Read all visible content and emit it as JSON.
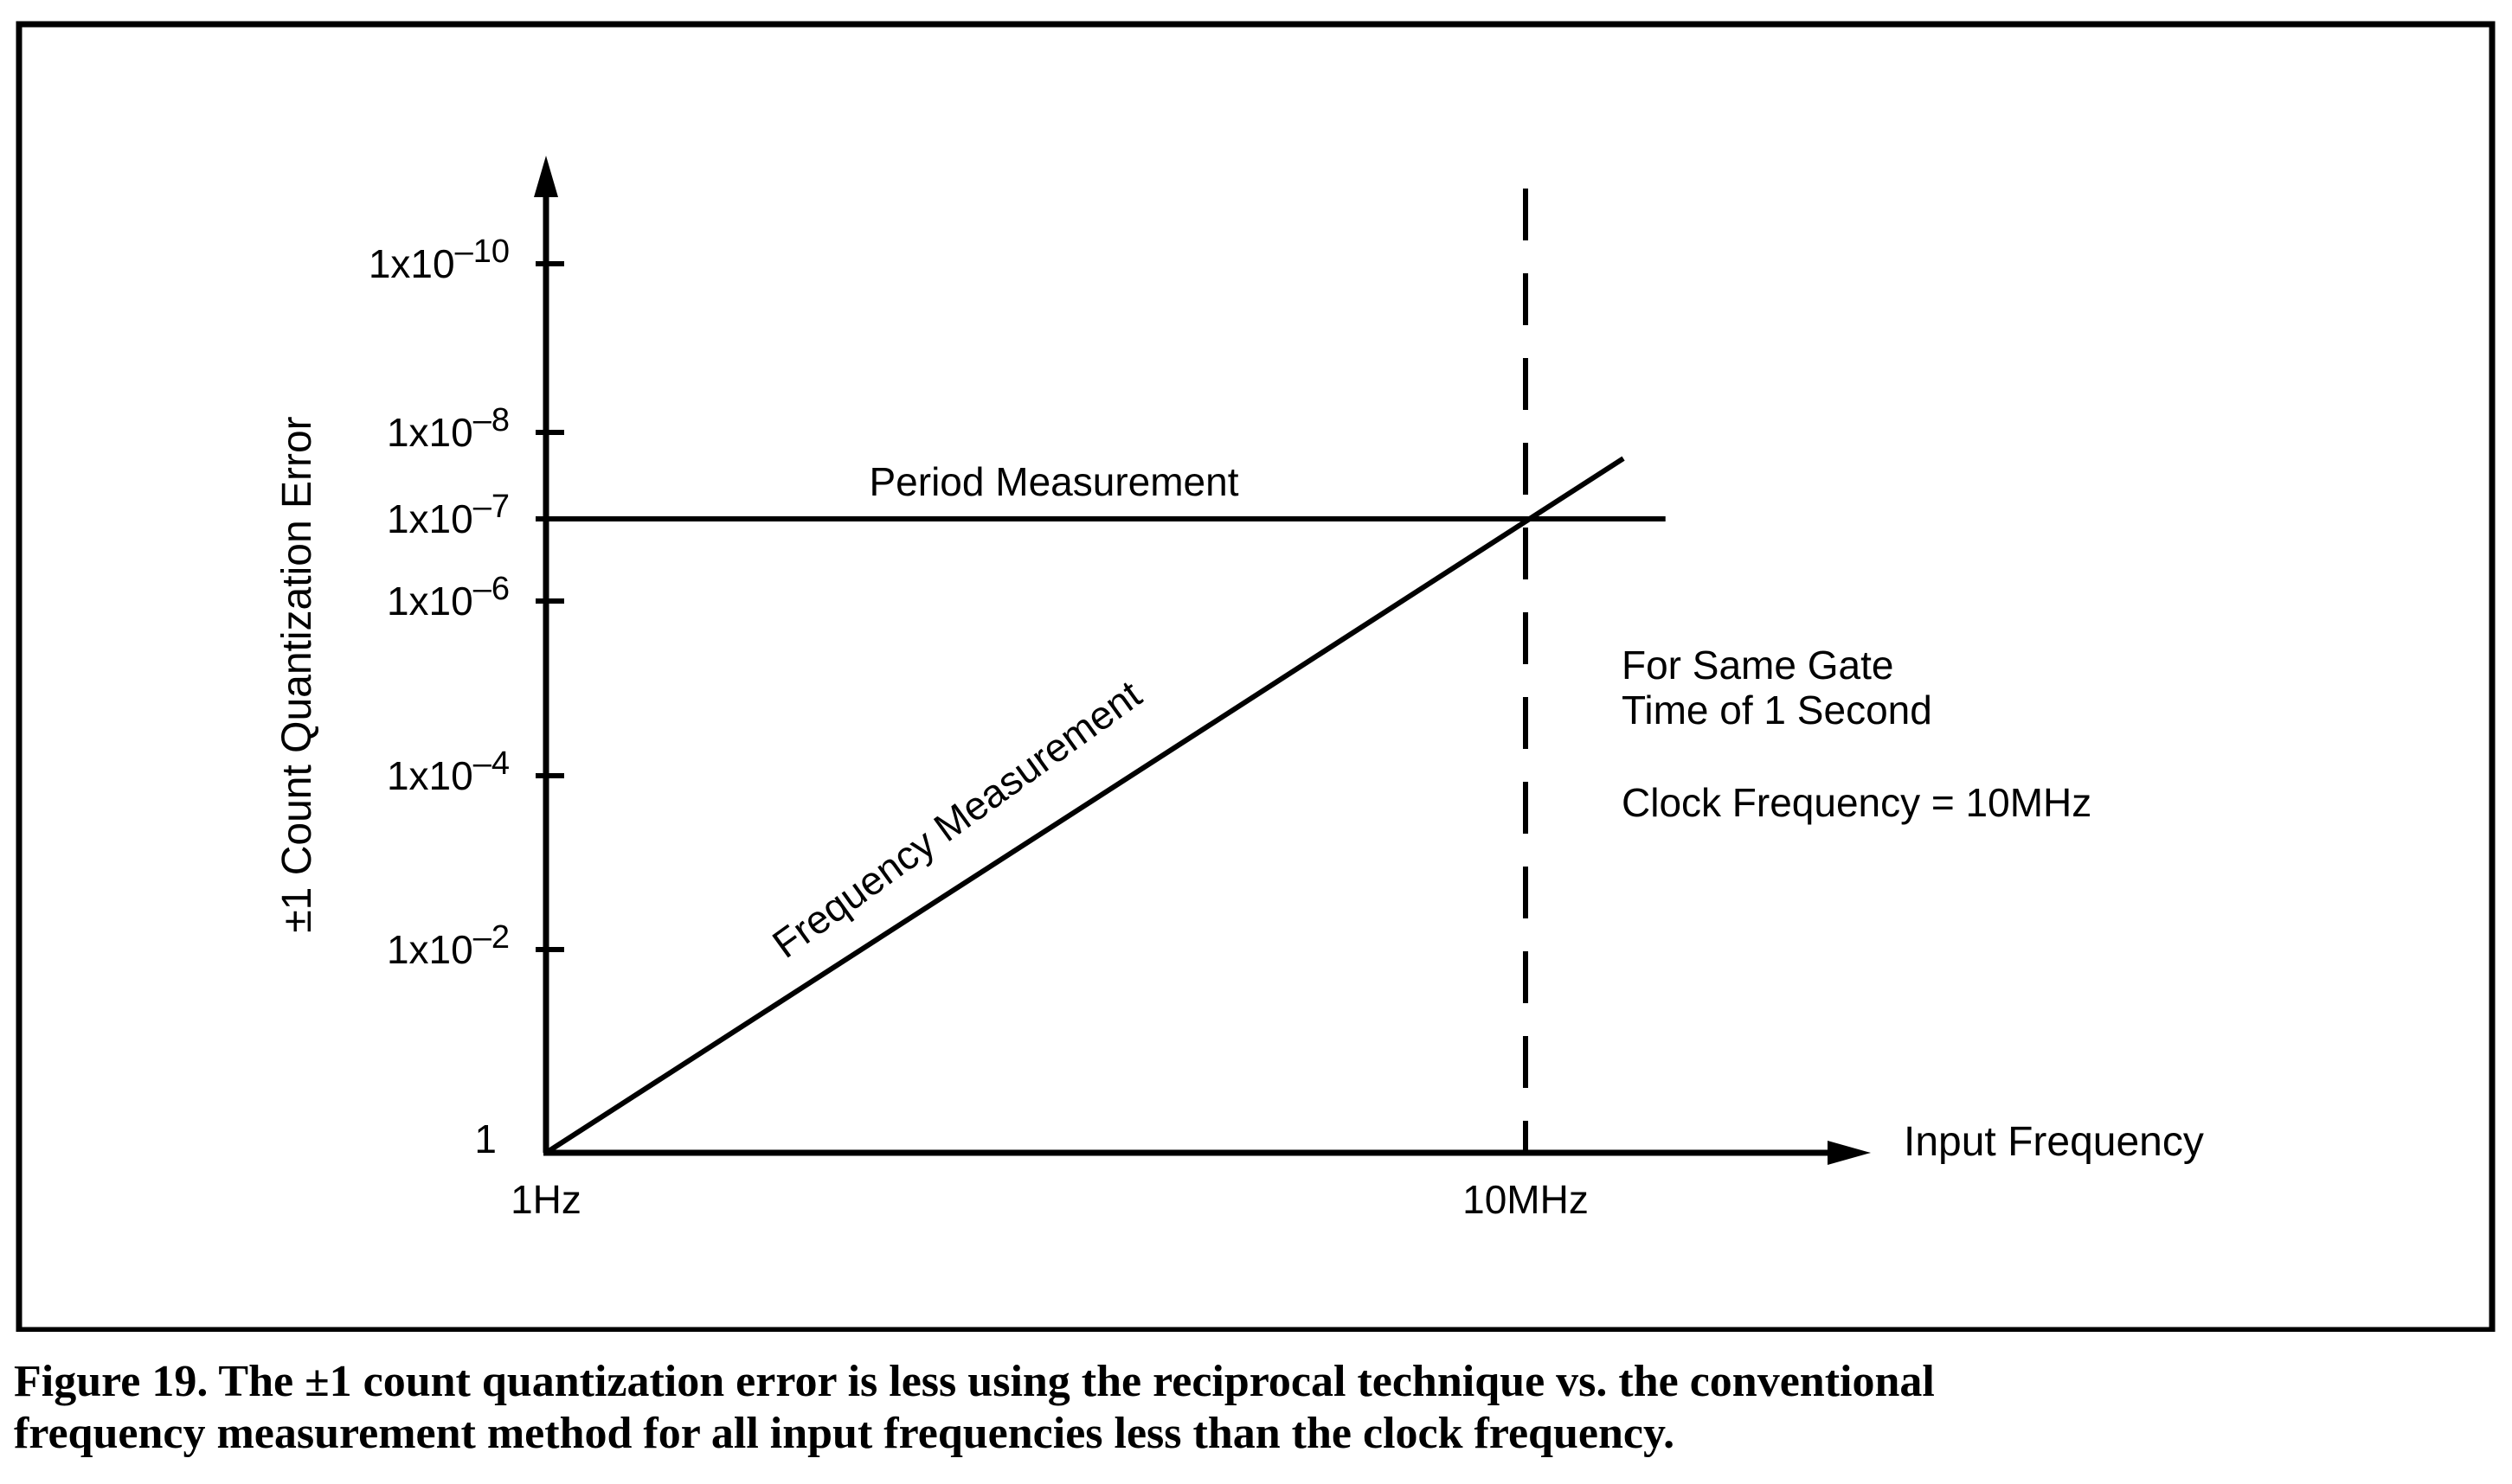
{
  "caption": {
    "line1": "Figure 19.  The ±1 count quantization error is less using the reciprocal technique vs. the conventional",
    "line2": "frequency measurement method for all input frequencies less than the clock frequency."
  },
  "chart_data": {
    "type": "line",
    "title": "",
    "xlabel": "Input Frequency",
    "ylabel": "±1 Count Quantization Error",
    "x_scale": "log",
    "y_scale": "log",
    "y_direction": "decreasing upward",
    "x_ticks": [
      {
        "value": 1,
        "label": "1Hz"
      },
      {
        "value": 10000000,
        "label": "10MHz"
      }
    ],
    "y_ticks": [
      {
        "value": 1,
        "label": "1"
      },
      {
        "value": 0.01,
        "label": "1x10–2"
      },
      {
        "value": 0.0001,
        "label": "1x10–4"
      },
      {
        "value": 1e-06,
        "label": "1x10–6"
      },
      {
        "value": 1e-07,
        "label": "1x10–7"
      },
      {
        "value": 1e-08,
        "label": "1x10–8"
      },
      {
        "value": 1e-10,
        "label": "1x10–10"
      }
    ],
    "series": [
      {
        "name": "Period Measurement",
        "x": [
          1,
          100000000
        ],
        "y": [
          1e-07,
          1e-07
        ]
      },
      {
        "name": "Frequency Measurement",
        "x": [
          1,
          50000000
        ],
        "y": [
          1,
          2e-08
        ]
      }
    ],
    "reference_lines": [
      {
        "axis": "x",
        "value": 10000000,
        "style": "dashed"
      }
    ],
    "annotations": [
      "For Same Gate",
      "Time of 1 Second",
      "Clock Frequency = 10MHz"
    ]
  }
}
